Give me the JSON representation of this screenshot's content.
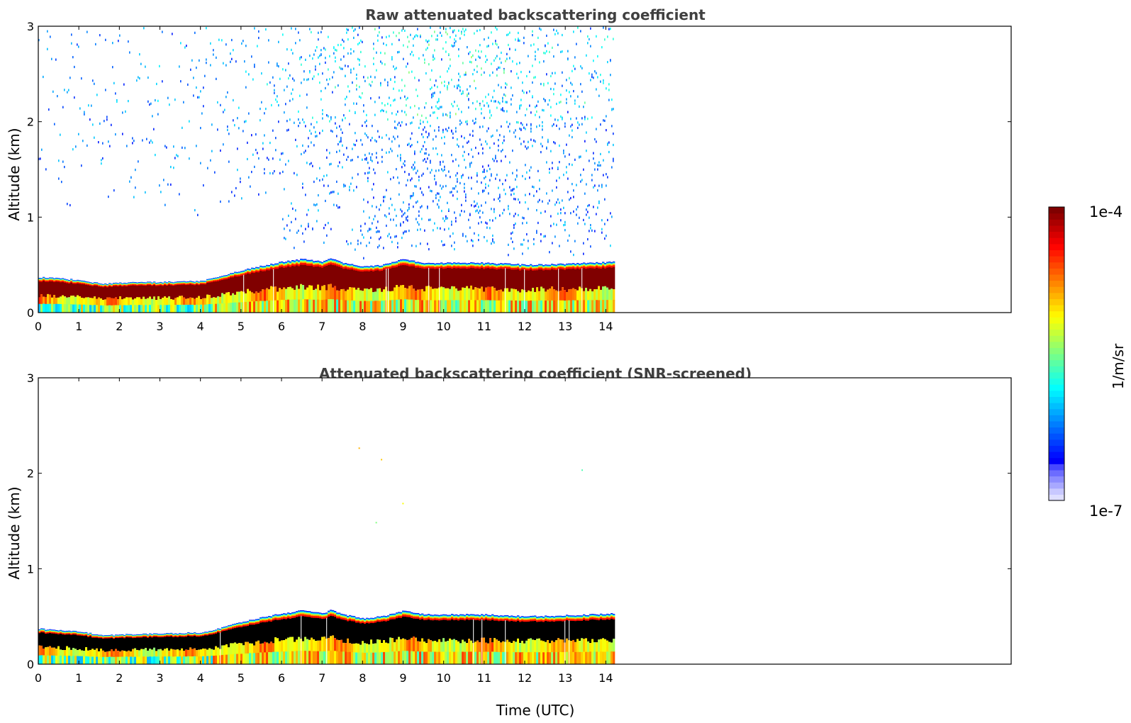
{
  "chart_data": [
    {
      "type": "heatmap",
      "title": "Raw attenuated backscattering coefficient",
      "xlabel": "",
      "ylabel": "Altitude (km)",
      "xlim": [
        0,
        24
      ],
      "ylim": [
        0,
        3
      ],
      "xticks": [
        "0",
        "1",
        "2",
        "3",
        "4",
        "5",
        "6",
        "7",
        "8",
        "9",
        "10",
        "11",
        "12",
        "13",
        "14"
      ],
      "yticks": [
        "0",
        "1",
        "2",
        "3"
      ],
      "data_end_time": 14.2,
      "screened": false,
      "layer_top_km": [
        [
          0,
          0.37
        ],
        [
          1,
          0.34
        ],
        [
          1.6,
          0.3
        ],
        [
          2,
          0.31
        ],
        [
          3,
          0.32
        ],
        [
          4,
          0.33
        ],
        [
          4.5,
          0.38
        ],
        [
          5,
          0.44
        ],
        [
          5.5,
          0.49
        ],
        [
          6,
          0.53
        ],
        [
          6.5,
          0.56
        ],
        [
          7,
          0.53
        ],
        [
          7.2,
          0.57
        ],
        [
          7.5,
          0.52
        ],
        [
          8,
          0.48
        ],
        [
          8.5,
          0.5
        ],
        [
          9,
          0.56
        ],
        [
          9.5,
          0.52
        ],
        [
          10,
          0.52
        ],
        [
          11,
          0.52
        ],
        [
          12,
          0.5
        ],
        [
          13,
          0.51
        ],
        [
          14.2,
          0.53
        ]
      ],
      "noise_density_aloft": [
        [
          0,
          0.13
        ],
        [
          2,
          0.12
        ],
        [
          4,
          0.16
        ],
        [
          5.5,
          0.24
        ],
        [
          7,
          0.38
        ],
        [
          9,
          0.55
        ],
        [
          10,
          0.62
        ],
        [
          11,
          0.58
        ],
        [
          12,
          0.48
        ],
        [
          13,
          0.42
        ],
        [
          14.2,
          0.35
        ]
      ]
    },
    {
      "type": "heatmap",
      "title": "Attenuated backscattering coefficient (SNR-screened)",
      "xlabel": "Time (UTC)",
      "ylabel": "Altitude (km)",
      "xlim": [
        0,
        24
      ],
      "ylim": [
        0,
        3
      ],
      "xticks": [
        "0",
        "1",
        "2",
        "3",
        "4",
        "5",
        "6",
        "7",
        "8",
        "9",
        "10",
        "11",
        "12",
        "13",
        "14"
      ],
      "yticks": [
        "0",
        "1",
        "2",
        "3"
      ],
      "data_end_time": 14.2,
      "screened": true,
      "layer_top_km": [
        [
          0,
          0.37
        ],
        [
          1,
          0.34
        ],
        [
          1.6,
          0.3
        ],
        [
          2,
          0.31
        ],
        [
          3,
          0.32
        ],
        [
          4,
          0.33
        ],
        [
          4.5,
          0.38
        ],
        [
          5,
          0.44
        ],
        [
          5.5,
          0.49
        ],
        [
          6,
          0.53
        ],
        [
          6.5,
          0.56
        ],
        [
          7,
          0.53
        ],
        [
          7.2,
          0.57
        ],
        [
          7.5,
          0.52
        ],
        [
          8,
          0.48
        ],
        [
          8.5,
          0.5
        ],
        [
          9,
          0.56
        ],
        [
          9.5,
          0.52
        ],
        [
          10,
          0.52
        ],
        [
          11,
          0.52
        ],
        [
          12,
          0.5
        ],
        [
          13,
          0.51
        ],
        [
          14.2,
          0.53
        ]
      ]
    }
  ],
  "colorbar": {
    "label": "1/m/sr",
    "max_label": "1e-4",
    "min_label": "1e-7",
    "scale": "log",
    "range": [
      1e-07,
      0.0001
    ],
    "colormap": "jet",
    "colors": {
      "saturated": "#000000",
      "low_levels": [
        "#dedeff",
        "#c8c8ff",
        "#a8a8ff",
        "#8c8cff",
        "#6c6cff",
        "#4848ff"
      ]
    }
  }
}
